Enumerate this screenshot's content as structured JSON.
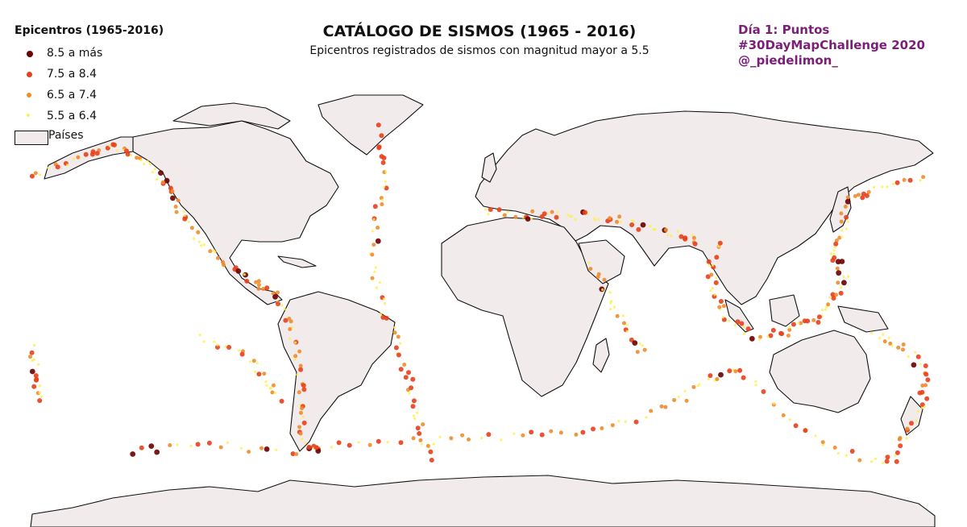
{
  "map": {
    "title": "CATÁLOGO DE SISMOS (1965 - 2016)",
    "subtitle": "Epicentros registrados de sismos con magnitud mayor a 5.5",
    "credits": [
      "Día 1: Puntos",
      "#30DayMapChallenge 2020",
      "@_piedelimon_"
    ],
    "land_color": "#f2ebeb",
    "border_color": "#111111",
    "credit_color": "#7a1f78"
  },
  "legend": {
    "title": "Epicentros (1965-2016)",
    "items": [
      {
        "label": "8.5 a más",
        "color": "#6b0000"
      },
      {
        "label": "7.5 a 8.4",
        "color": "#e8401c"
      },
      {
        "label": "6.5 a 7.4",
        "color": "#f08c2c"
      },
      {
        "label": "5.5 a 6.4",
        "color": "#ffef4a"
      }
    ],
    "countries_label": "Países"
  }
}
